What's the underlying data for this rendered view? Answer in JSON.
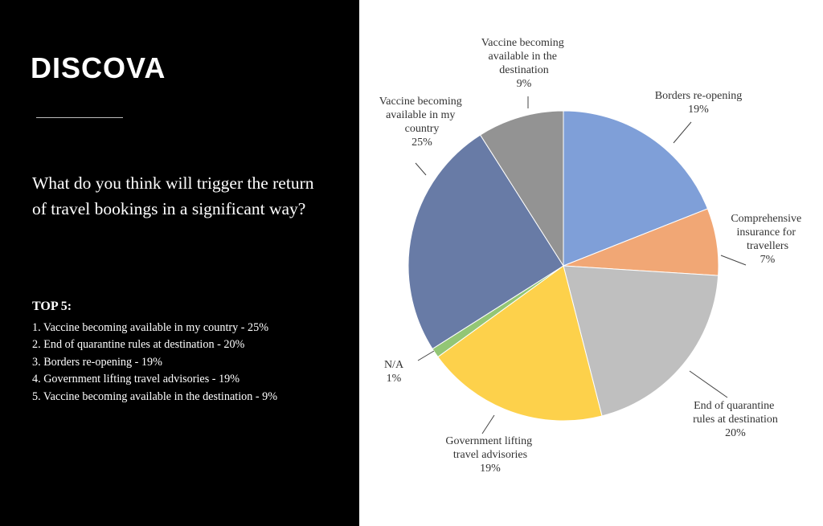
{
  "header": {
    "logo": "DISCOVA",
    "question": "What do you think will trigger the return of travel bookings in a significant way?"
  },
  "top5": {
    "title": "TOP 5:",
    "items": [
      "1. Vaccine becoming available in my country - 25%",
      "2. End of quarantine rules at destination - 20%",
      "3. Borders re-opening - 19%",
      "4. Government lifting travel advisories - 19%",
      "5. Vaccine becoming available in the destination - 9%"
    ]
  },
  "chart_data": {
    "type": "pie",
    "categories": [
      "Borders re-opening",
      "Comprehensive insurance for travellers",
      "End of quarantine rules at destination",
      "Government lifting travel advisories",
      "N/A",
      "Vaccine becoming available in my country",
      "Vaccine becoming available in the destination"
    ],
    "values": [
      19,
      7,
      20,
      19,
      1,
      25,
      9
    ],
    "value_labels": [
      "19%",
      "7%",
      "20%",
      "19%",
      "1%",
      "25%",
      "9%"
    ],
    "colors": [
      "#7f9fd8",
      "#f1a775",
      "#bfbfbf",
      "#fdd14b",
      "#93c675",
      "#687ba6",
      "#939393"
    ]
  }
}
